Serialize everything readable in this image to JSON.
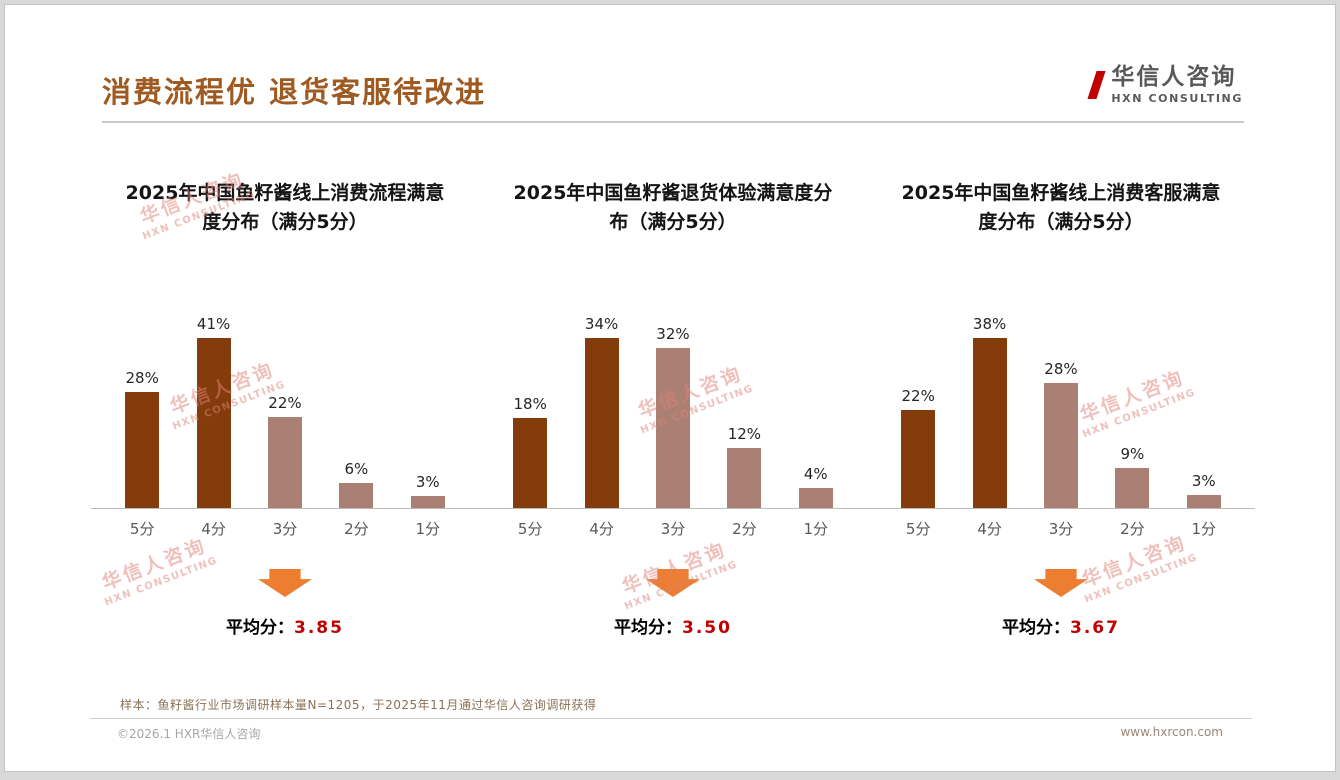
{
  "header": {
    "title": "消费流程优 退货客服待改进",
    "logo_name": "华信人咨询",
    "logo_sub": "HXN CONSULTING"
  },
  "watermark": {
    "line1": "华信人咨询",
    "line2": "HXN CONSULTING"
  },
  "chart_data": [
    {
      "type": "bar",
      "title": "2025年中国鱼籽酱线上消费流程满意度分布（满分5分）",
      "categories": [
        "5分",
        "4分",
        "3分",
        "2分",
        "1分"
      ],
      "values": [
        28,
        41,
        22,
        6,
        3
      ],
      "unit": "%",
      "ylim": [
        0,
        45
      ],
      "grid": false,
      "legend": "none",
      "bar_colors": [
        "#843c0c",
        "#843c0c",
        "#ab8074",
        "#ab8074",
        "#ab8074"
      ],
      "average_label": "平均分：",
      "average_value": "3.85"
    },
    {
      "type": "bar",
      "title": "2025年中国鱼籽酱退货体验满意度分布（满分5分）",
      "categories": [
        "5分",
        "4分",
        "3分",
        "2分",
        "1分"
      ],
      "values": [
        18,
        34,
        32,
        12,
        4
      ],
      "unit": "%",
      "ylim": [
        0,
        38
      ],
      "grid": false,
      "legend": "none",
      "bar_colors": [
        "#843c0c",
        "#843c0c",
        "#ab8074",
        "#ab8074",
        "#ab8074"
      ],
      "average_label": "平均分：",
      "average_value": "3.50"
    },
    {
      "type": "bar",
      "title": "2025年中国鱼籽酱线上消费客服满意度分布（满分5分）",
      "categories": [
        "5分",
        "4分",
        "3分",
        "2分",
        "1分"
      ],
      "values": [
        22,
        38,
        28,
        9,
        3
      ],
      "unit": "%",
      "ylim": [
        0,
        42
      ],
      "grid": false,
      "legend": "none",
      "bar_colors": [
        "#843c0c",
        "#843c0c",
        "#ab8074",
        "#ab8074",
        "#ab8074"
      ],
      "average_label": "平均分：",
      "average_value": "3.67"
    }
  ],
  "footnote": "样本：鱼籽酱行业市场调研样本量N=1205，于2025年11月通过华信人咨询调研获得",
  "footer": {
    "left": "©2026.1 HXR华信人咨询",
    "right": "www.hxrcon.com"
  },
  "colors": {
    "bar_dark": "#843c0c",
    "bar_light": "#ab8074",
    "title_brown": "#9e5a20",
    "average_red": "#c00000",
    "arrow_orange": "#ed7d31"
  }
}
